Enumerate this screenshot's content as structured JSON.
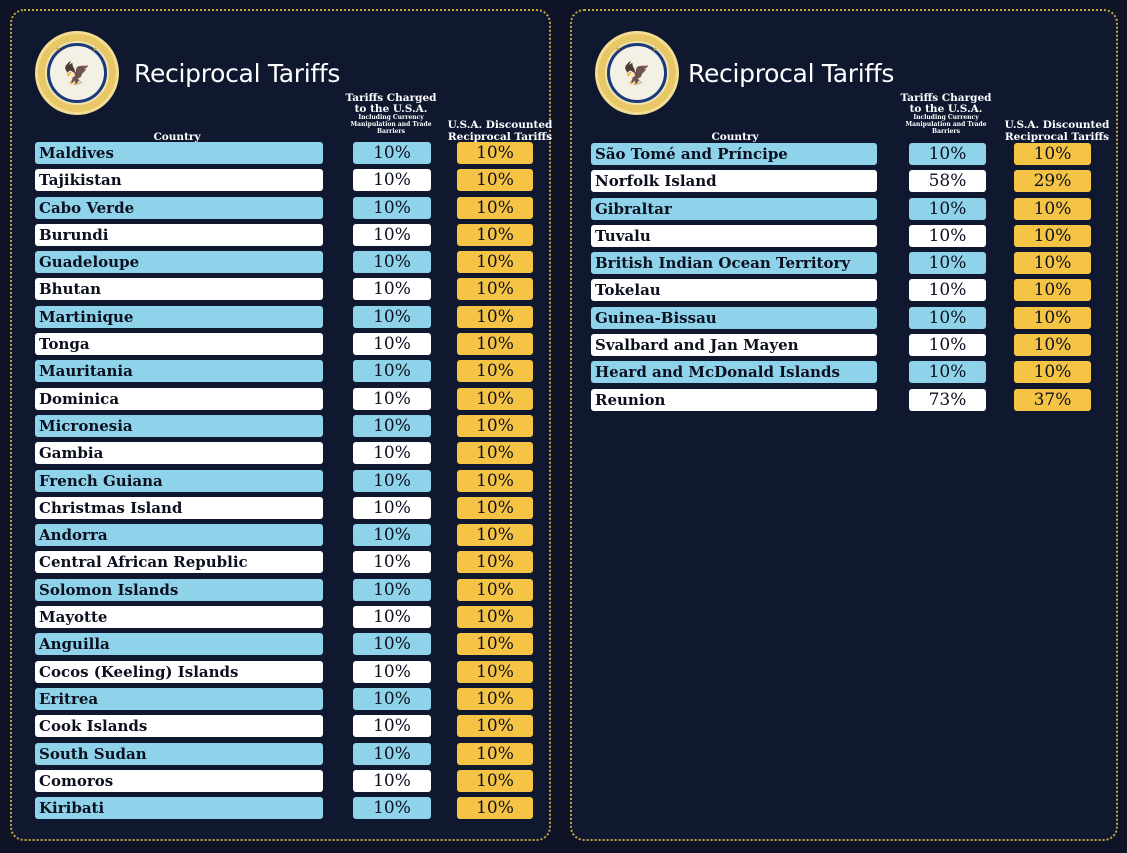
{
  "title": "Reciprocal Tariffs",
  "headers": {
    "country": "Country",
    "charged_main": "Tariffs Charged to the U.S.A.",
    "charged_sub": "Including Currency Manipulation and Trade Barriers",
    "discounted": "U.S.A. Discounted Reciprocal Tariffs"
  },
  "colors": {
    "background": "#101830",
    "border": "#c9a43a",
    "row_blue": "#8fd3ea",
    "row_white": "#ffffff",
    "discount": "#f6c445"
  },
  "left_table": [
    {
      "country": "Maldives",
      "charged": "10%",
      "discounted": "10%"
    },
    {
      "country": "Tajikistan",
      "charged": "10%",
      "discounted": "10%"
    },
    {
      "country": "Cabo Verde",
      "charged": "10%",
      "discounted": "10%"
    },
    {
      "country": "Burundi",
      "charged": "10%",
      "discounted": "10%"
    },
    {
      "country": "Guadeloupe",
      "charged": "10%",
      "discounted": "10%"
    },
    {
      "country": "Bhutan",
      "charged": "10%",
      "discounted": "10%"
    },
    {
      "country": "Martinique",
      "charged": "10%",
      "discounted": "10%"
    },
    {
      "country": "Tonga",
      "charged": "10%",
      "discounted": "10%"
    },
    {
      "country": "Mauritania",
      "charged": "10%",
      "discounted": "10%"
    },
    {
      "country": "Dominica",
      "charged": "10%",
      "discounted": "10%"
    },
    {
      "country": "Micronesia",
      "charged": "10%",
      "discounted": "10%"
    },
    {
      "country": "Gambia",
      "charged": "10%",
      "discounted": "10%"
    },
    {
      "country": "French Guiana",
      "charged": "10%",
      "discounted": "10%"
    },
    {
      "country": "Christmas Island",
      "charged": "10%",
      "discounted": "10%"
    },
    {
      "country": "Andorra",
      "charged": "10%",
      "discounted": "10%"
    },
    {
      "country": "Central African Republic",
      "charged": "10%",
      "discounted": "10%"
    },
    {
      "country": "Solomon Islands",
      "charged": "10%",
      "discounted": "10%"
    },
    {
      "country": "Mayotte",
      "charged": "10%",
      "discounted": "10%"
    },
    {
      "country": "Anguilla",
      "charged": "10%",
      "discounted": "10%"
    },
    {
      "country": "Cocos (Keeling) Islands",
      "charged": "10%",
      "discounted": "10%"
    },
    {
      "country": "Eritrea",
      "charged": "10%",
      "discounted": "10%"
    },
    {
      "country": "Cook Islands",
      "charged": "10%",
      "discounted": "10%"
    },
    {
      "country": "South Sudan",
      "charged": "10%",
      "discounted": "10%"
    },
    {
      "country": "Comoros",
      "charged": "10%",
      "discounted": "10%"
    },
    {
      "country": "Kiribati",
      "charged": "10%",
      "discounted": "10%"
    }
  ],
  "right_table": [
    {
      "country": "São Tomé and Príncipe",
      "charged": "10%",
      "discounted": "10%"
    },
    {
      "country": "Norfolk Island",
      "charged": "58%",
      "discounted": "29%"
    },
    {
      "country": "Gibraltar",
      "charged": "10%",
      "discounted": "10%"
    },
    {
      "country": "Tuvalu",
      "charged": "10%",
      "discounted": "10%"
    },
    {
      "country": "British Indian Ocean Territory",
      "charged": "10%",
      "discounted": "10%"
    },
    {
      "country": "Tokelau",
      "charged": "10%",
      "discounted": "10%"
    },
    {
      "country": "Guinea-Bissau",
      "charged": "10%",
      "discounted": "10%"
    },
    {
      "country": "Svalbard and Jan Mayen",
      "charged": "10%",
      "discounted": "10%"
    },
    {
      "country": "Heard and McDonald Islands",
      "charged": "10%",
      "discounted": "10%"
    },
    {
      "country": "Reunion",
      "charged": "73%",
      "discounted": "37%"
    }
  ]
}
